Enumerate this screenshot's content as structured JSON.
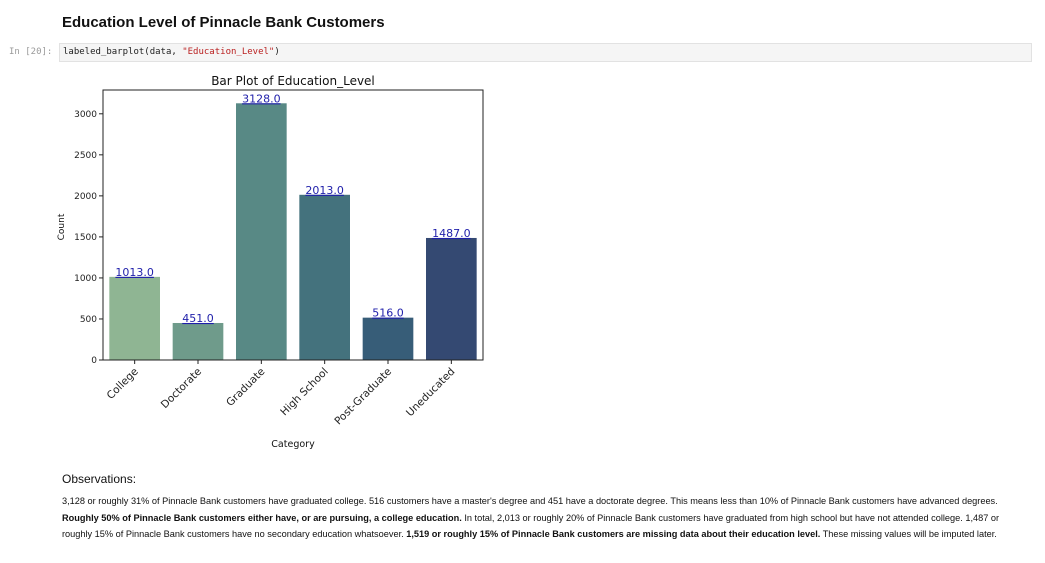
{
  "heading": "Education Level of Pinnacle Bank Customers",
  "cell": {
    "prompt": "In [20]:",
    "code_fn": "labeled_barplot(data, ",
    "code_arg": "\"Education_Level\"",
    "code_end": ")"
  },
  "chart_data": {
    "type": "bar",
    "title": "Bar Plot of Education_Level",
    "xlabel": "Category",
    "ylabel": "Count",
    "categories": [
      "College",
      "Doctorate",
      "Graduate",
      "High School",
      "Post-Graduate",
      "Uneducated"
    ],
    "values": [
      1013,
      451,
      3128,
      2013,
      516,
      1487
    ],
    "value_labels": [
      "1013.0",
      "451.0",
      "3128.0",
      "2013.0",
      "516.0",
      "1487.0"
    ],
    "yticks": [
      0,
      500,
      1000,
      1500,
      2000,
      2500,
      3000
    ],
    "ylim": [
      0,
      3290
    ],
    "colors": [
      "#8fb593",
      "#6f9b8b",
      "#588985",
      "#44727d",
      "#375d78",
      "#344972"
    ],
    "label_color": "#1f1faa"
  },
  "observations": {
    "title": "Observations:",
    "segments": [
      {
        "text": "3,128 or roughly 31% of Pinnacle Bank customers have graduated college. 516 customers have a master's degree and 451 have a doctorate degree. This means less than 10% of Pinnacle Bank customers have advanced degrees. ",
        "bold": false
      },
      {
        "text": "Roughly 50% of Pinnacle Bank customers either have, or are pursuing, a college education.",
        "bold": true
      },
      {
        "text": " In total, 2,013 or roughly 20% of Pinnacle Bank customers have graduated from high school but have not attended college. 1,487 or roughly 15% of Pinnacle Bank customers have no secondary education whatsoever. ",
        "bold": false
      },
      {
        "text": "1,519 or roughly 15% of Pinnacle Bank customers are missing data about their education level.",
        "bold": true
      },
      {
        "text": " These missing values will be imputed later.",
        "bold": false
      }
    ]
  }
}
